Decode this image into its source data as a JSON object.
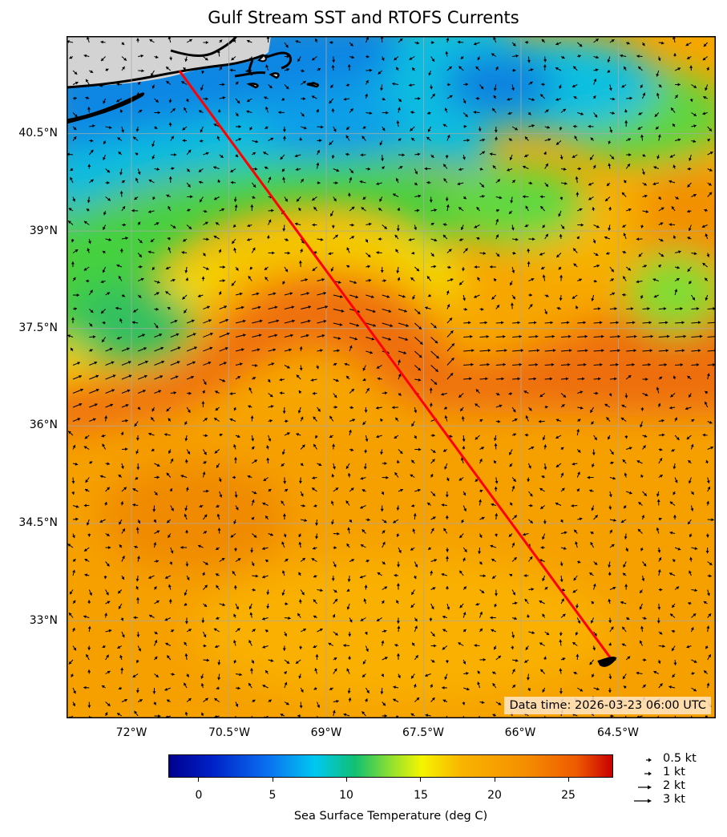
{
  "title": "Gulf Stream SST and RTOFS Currents",
  "data_time": "Data time: 2026-03-23 06:00 UTC",
  "lat_ticks": [
    "40.5°N",
    "39°N",
    "37.5°N",
    "36°N",
    "34.5°N",
    "33°N"
  ],
  "lon_ticks": [
    "72°W",
    "70.5°W",
    "69°W",
    "67.5°W",
    "66°W",
    "64.5°W"
  ],
  "map_extent": {
    "lon_min": -73.0,
    "lon_max": -63.0,
    "lat_min": 31.5,
    "lat_max": 42.0
  },
  "route": {
    "start": {
      "lon": -71.25,
      "lat": 41.45
    },
    "end": {
      "lon": -64.6,
      "lat": 32.4
    },
    "color": "#ff0000"
  },
  "colorbar": {
    "title": "Sea Surface Temperature (deg C)",
    "ticks": [
      "0",
      "5",
      "10",
      "15",
      "20",
      "25"
    ],
    "min": -2,
    "max": 28
  },
  "legend": {
    "items": [
      "0.5 kt",
      "1 kt",
      "2 kt",
      "3 kt"
    ],
    "speeds_kt": [
      0.5,
      1,
      2,
      3
    ]
  },
  "colors": {
    "land": "#d3d3d3",
    "coast": "#000000",
    "grid": "#aaaaaa",
    "arrow": "#000000"
  }
}
